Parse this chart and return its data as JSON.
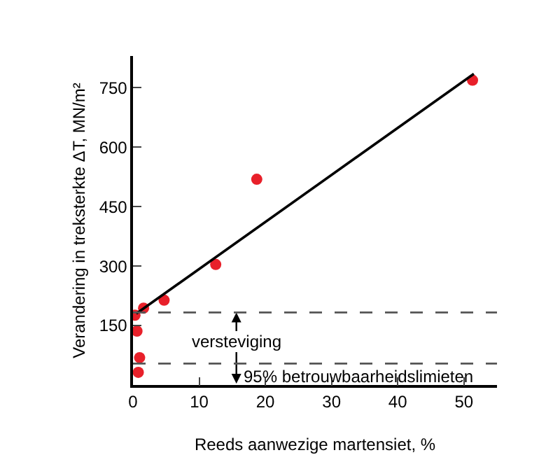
{
  "chart_data": {
    "type": "scatter",
    "xlabel": "Reeds aanwezige martensiet, %",
    "ylabel": "Verandering in treksterkte ΔT, MN/m²",
    "xlim": [
      0,
      55
    ],
    "xticks": [
      0,
      10,
      20,
      30,
      40,
      50
    ],
    "ylim": [
      0,
      830
    ],
    "yticks": [
      150,
      300,
      450,
      600,
      750
    ],
    "grid": false,
    "legend": false,
    "series": [
      {
        "marker": "circle",
        "color": "#e8202a",
        "x": [
          51.3,
          18.7,
          12.5,
          4.7,
          1.6,
          0.3,
          0.6,
          1.0,
          0.8
        ],
        "values": [
          769,
          519,
          304,
          214,
          194,
          176,
          136,
          69,
          32
        ]
      },
      {
        "type": "line",
        "color": "#000000",
        "x": [
          0.5,
          51.5
        ],
        "values": [
          180,
          785
        ],
        "line_style": "solid"
      }
    ],
    "ref_lines": [
      {
        "axis": "y",
        "value": 183,
        "color": "#555555",
        "line_style": "dashed"
      },
      {
        "axis": "y",
        "value": 54,
        "color": "#555555",
        "line_style": "dashed"
      }
    ],
    "annotations": [
      "versteviging",
      "95% betrouwbaarheidslimieten"
    ]
  }
}
